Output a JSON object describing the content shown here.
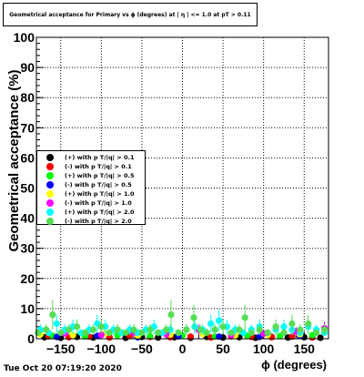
{
  "chart_data": {
    "type": "scatter",
    "title": "Geometrical acceptance for Primary vs ϕ (degrees) at | η | <= 1.0 at pT > 0.11",
    "xlabel": "ϕ (degrees)",
    "ylabel": "Geometrical acceptance (%)",
    "xlim": [
      -180,
      180
    ],
    "ylim": [
      0,
      100
    ],
    "xticks": [
      "−150",
      "−100",
      "−50",
      "0",
      "50",
      "100",
      "150"
    ],
    "yticks": [
      "0",
      "10",
      "20",
      "30",
      "40",
      "50",
      "60",
      "70",
      "80",
      "90",
      "100"
    ],
    "grid": true,
    "legend_position": "left-middle",
    "series": [
      {
        "name": "(+) with p T/|q| > 0.1",
        "color": "#000000",
        "x": [
          -170,
          -150,
          -130,
          -110,
          -90,
          -70,
          -50,
          -30,
          -10,
          10,
          30,
          50,
          70,
          90,
          110,
          130,
          150,
          170
        ],
        "y": [
          0.5,
          0.3,
          0.6,
          0.4,
          0.5,
          0.3,
          0.6,
          0.4,
          0.5,
          0.3,
          0.6,
          0.4,
          0.5,
          0.3,
          0.6,
          0.4,
          0.5,
          0.3
        ]
      },
      {
        "name": "(-) with p T/|q| > 0.1",
        "color": "#ff0000",
        "x": [
          -165,
          -140,
          -115,
          -90,
          -65,
          -40,
          -15,
          10,
          35,
          60,
          85,
          110,
          135,
          160
        ],
        "y": [
          0.8,
          0.5,
          0.7,
          0.4,
          0.9,
          0.6,
          0.5,
          0.7,
          0.4,
          0.8,
          0.6,
          0.5,
          0.7,
          0.4
        ]
      },
      {
        "name": "(+) with p T/|q| > 0.5",
        "color": "#00ff00",
        "x": [
          -160,
          -120,
          -80,
          -40,
          0,
          40,
          80,
          120,
          160
        ],
        "y": [
          1.0,
          0.8,
          1.2,
          0.9,
          1.1,
          0.7,
          1.0,
          0.9,
          1.2
        ]
      },
      {
        "name": "(-) with p T/|q| > 0.5",
        "color": "#0000ff",
        "x": [
          -155,
          -105,
          -55,
          -5,
          45,
          95,
          145
        ],
        "y": [
          0.6,
          0.9,
          0.5,
          0.8,
          0.7,
          0.6,
          0.9
        ]
      },
      {
        "name": "(+) with p T/|q| > 1.0",
        "color": "#ffff00",
        "x": [
          -175,
          -135,
          -95,
          -55,
          -15,
          25,
          65,
          105,
          145
        ],
        "y": [
          1.5,
          1.2,
          1.8,
          1.0,
          1.4,
          1.6,
          1.1,
          1.3,
          1.5
        ]
      },
      {
        "name": "(-) with p T/|q| > 1.0",
        "color": "#ff00ff",
        "x": [
          -145,
          -100,
          -60,
          -20,
          20,
          60,
          100,
          140,
          175
        ],
        "y": [
          1.8,
          1.3,
          2.0,
          1.5,
          3.0,
          1.2,
          1.7,
          2.4,
          3.5
        ]
      },
      {
        "name": "(+) with p T/|q| > 2.0",
        "color": "#00ffff",
        "x": [
          -175,
          -165,
          -155,
          -145,
          -135,
          -125,
          -115,
          -105,
          -95,
          -85,
          -75,
          -65,
          -55,
          -45,
          -35,
          -25,
          -15,
          -5,
          5,
          15,
          25,
          35,
          45,
          55,
          65,
          75,
          85,
          95,
          105,
          115,
          125,
          135,
          145,
          155,
          165,
          175
        ],
        "y": [
          3,
          2,
          5,
          3,
          4,
          2,
          3,
          5,
          4,
          3,
          2,
          3,
          2,
          3,
          4,
          2,
          3,
          2,
          3,
          4,
          3,
          5,
          6,
          4,
          3,
          2,
          3,
          4,
          2,
          3,
          4,
          3,
          2,
          4,
          3,
          2
        ]
      },
      {
        "name": "(-) with p T/|q| > 2.0",
        "color": "#55dd55",
        "x": [
          -178,
          -168,
          -160,
          -150,
          -140,
          -130,
          -120,
          -110,
          -100,
          -90,
          -80,
          -70,
          -60,
          -50,
          -40,
          -30,
          -20,
          -14,
          -5,
          5,
          14,
          22,
          30,
          40,
          50,
          60,
          70,
          77,
          85,
          95,
          105,
          115,
          125,
          135,
          145,
          155,
          165,
          175
        ],
        "y": [
          2,
          3,
          8,
          2,
          3,
          4,
          2,
          3,
          4,
          2,
          3,
          2,
          3,
          2,
          3,
          2,
          3,
          8,
          2,
          3,
          7,
          3,
          2,
          3,
          4,
          2,
          3,
          7,
          2,
          3,
          2,
          4,
          2,
          5,
          3,
          5,
          2,
          3
        ]
      }
    ]
  },
  "footer": {
    "timestamp": "Tue Oct 20 07:19:20 2020"
  }
}
